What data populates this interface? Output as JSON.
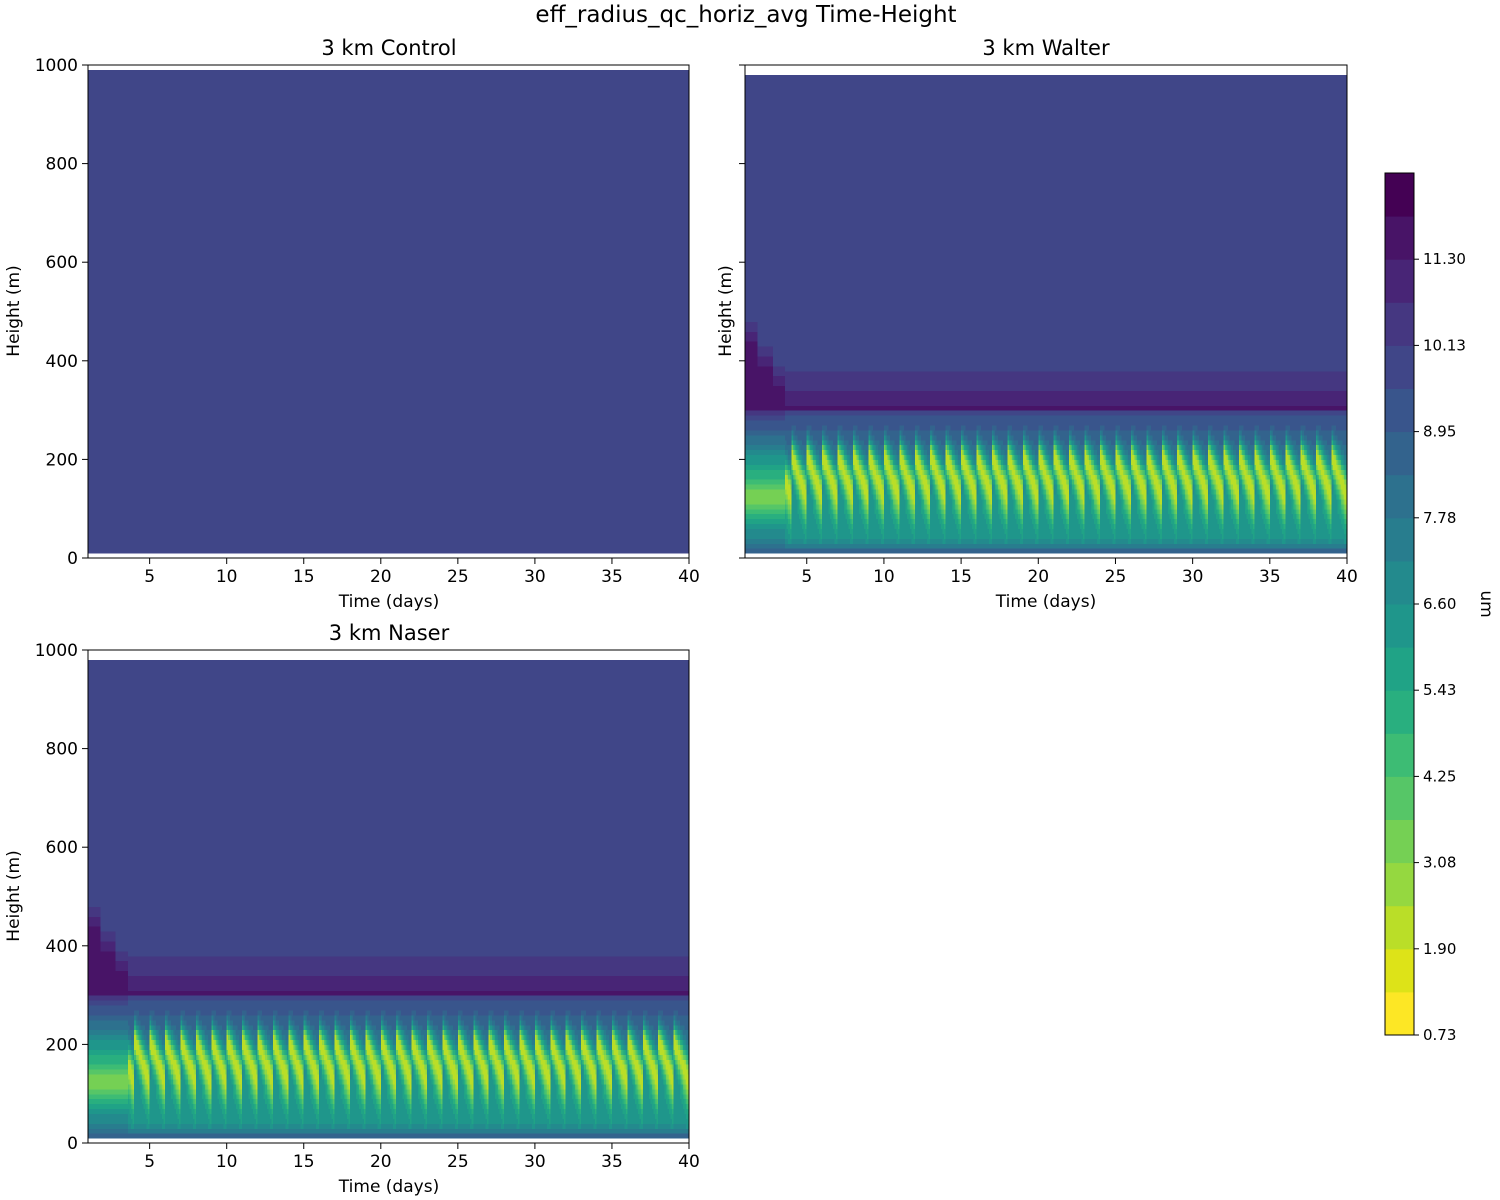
{
  "chart_data": {
    "type": "heatmap",
    "suptitle": "eff_radius_qc_horiz_avg Time-Height",
    "xlabel": "Time (days)",
    "ylabel": "Height (m)",
    "xlim": [
      1,
      40
    ],
    "ylim": [
      0,
      1000
    ],
    "xticks": [
      5,
      10,
      15,
      20,
      25,
      30,
      35,
      40
    ],
    "yticks": [
      0,
      200,
      400,
      600,
      800,
      1000
    ],
    "panels": [
      {
        "title": "3 km Control",
        "field_top": 990,
        "field_bottom": 10,
        "background_value": 9.7,
        "cloud_layer": false
      },
      {
        "title": "3 km Walter",
        "field_top": 980,
        "field_bottom": 10,
        "background_value": 9.7,
        "cloud_layer": true,
        "cloud_top": 400,
        "cycle_days": 1.0,
        "max_radius_value": 11.5,
        "min_radius_value": 2.0
      },
      {
        "title": "3 km Naser",
        "field_top": 980,
        "field_bottom": 10,
        "background_value": 9.7,
        "cloud_layer": true,
        "cloud_top": 400,
        "cycle_days": 1.0,
        "max_radius_value": 11.5,
        "min_radius_value": 2.0
      }
    ],
    "colorbar": {
      "label": "um",
      "vmin": 0.73,
      "vmax": 12.48,
      "levels": 21,
      "tick_labels": [
        "0.73",
        "1.90",
        "3.08",
        "4.25",
        "5.43",
        "6.60",
        "7.78",
        "8.95",
        "10.13",
        "11.30"
      ],
      "colors": [
        "#fde725",
        "#dde318",
        "#bade28",
        "#95d840",
        "#75d054",
        "#56c667",
        "#3dbc74",
        "#29af7f",
        "#20a386",
        "#1f968b",
        "#238a8d",
        "#287d8e",
        "#2d718e",
        "#33638d",
        "#39558c",
        "#404688",
        "#453781",
        "#482576",
        "#481467",
        "#440154"
      ]
    }
  }
}
